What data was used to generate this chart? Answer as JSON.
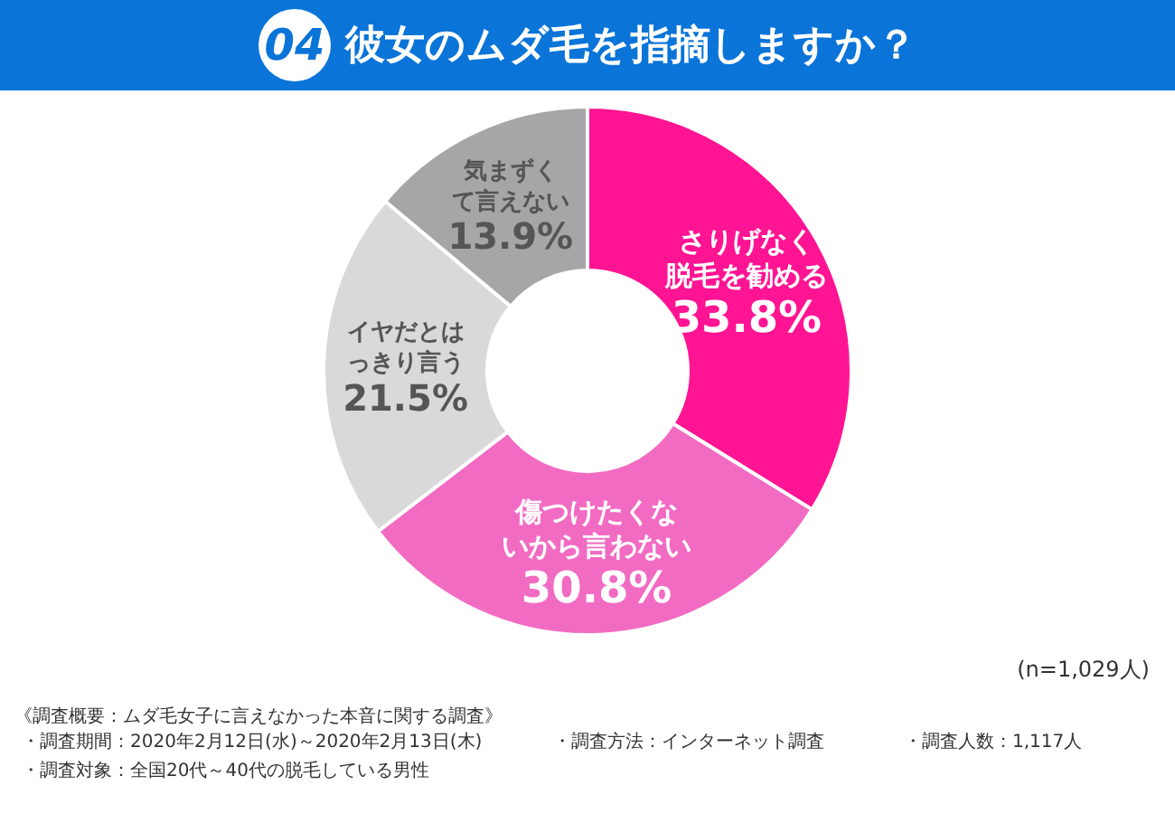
{
  "chart_data": {
    "type": "donut",
    "title": "04 彼女のムダ毛を指摘しますか？",
    "categories": [
      "さりげなく脱毛を勧める",
      "傷つけたくないから言わない",
      "イヤだとはっきり言う",
      "気まずくて言えない"
    ],
    "values": [
      33.8,
      30.8,
      21.5,
      13.9
    ],
    "value_labels": [
      "33.8%",
      "30.8%",
      "21.5%",
      "13.9%"
    ],
    "colors": [
      "#ff1493",
      "#f26bc3",
      "#d9d9d9",
      "#a6a6a6"
    ],
    "legend": false,
    "annotations": [
      "(n=1,029人)",
      "《調査概要：ムダ毛女子に言えなかった本音に関する調査》",
      "・調査期間：2020年2月12日(水)～2020年2月13日(木)",
      "・調査方法：インターネット調査",
      "・調査人数：1,117人",
      "・調査対象：全国20代～40代の脱毛している男性"
    ]
  }
}
